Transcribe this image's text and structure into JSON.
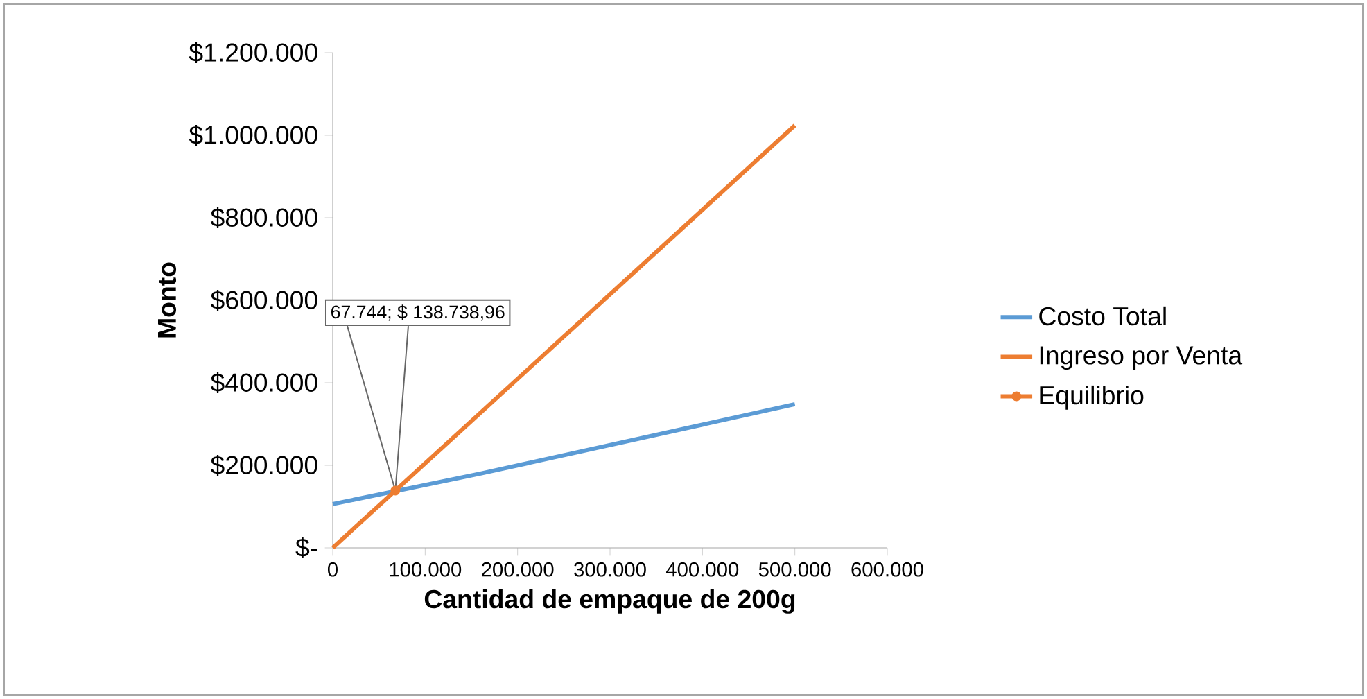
{
  "chart_data": {
    "type": "line",
    "xlabel": "Cantidad de empaque de 200g",
    "ylabel": "Monto",
    "series": [
      {
        "name": "Costo Total",
        "color": "#5b9bd5",
        "x": [
          0,
          160000,
          500000
        ],
        "values": [
          106000,
          180000,
          348000
        ]
      },
      {
        "name": "Ingreso por Venta",
        "color": "#ed7d31",
        "x": [
          0,
          500000
        ],
        "values": [
          0,
          1024000
        ]
      },
      {
        "name": "Equilibrio",
        "color": "#ed7d31",
        "x": [
          67744
        ],
        "values": [
          138739
        ],
        "marker": "circle"
      }
    ],
    "xlim": [
      0,
      600000
    ],
    "ylim": [
      0,
      1200000
    ],
    "xticks": [
      0,
      {
        "value": 100000,
        "label": "100.000"
      },
      {
        "value": 200000,
        "label": "200.000"
      },
      {
        "value": 300000,
        "label": "300.000"
      },
      {
        "value": 400000,
        "label": "400.000"
      },
      {
        "value": 500000,
        "label": "500.000"
      },
      {
        "value": 600000,
        "label": "600.000"
      }
    ],
    "yticks": [
      {
        "value": 0,
        "label": "$-"
      },
      {
        "value": 200000,
        "label": "$200.000"
      },
      {
        "value": 400000,
        "label": "$400.000"
      },
      {
        "value": 600000,
        "label": "$600.000"
      },
      {
        "value": 800000,
        "label": "$800.000"
      },
      {
        "value": 1000000,
        "label": "$1.000.000"
      },
      {
        "value": 1200000,
        "label": "$1.200.000"
      }
    ],
    "legend": "right",
    "annotations": [
      "67.744; $ 138.738,96"
    ]
  }
}
